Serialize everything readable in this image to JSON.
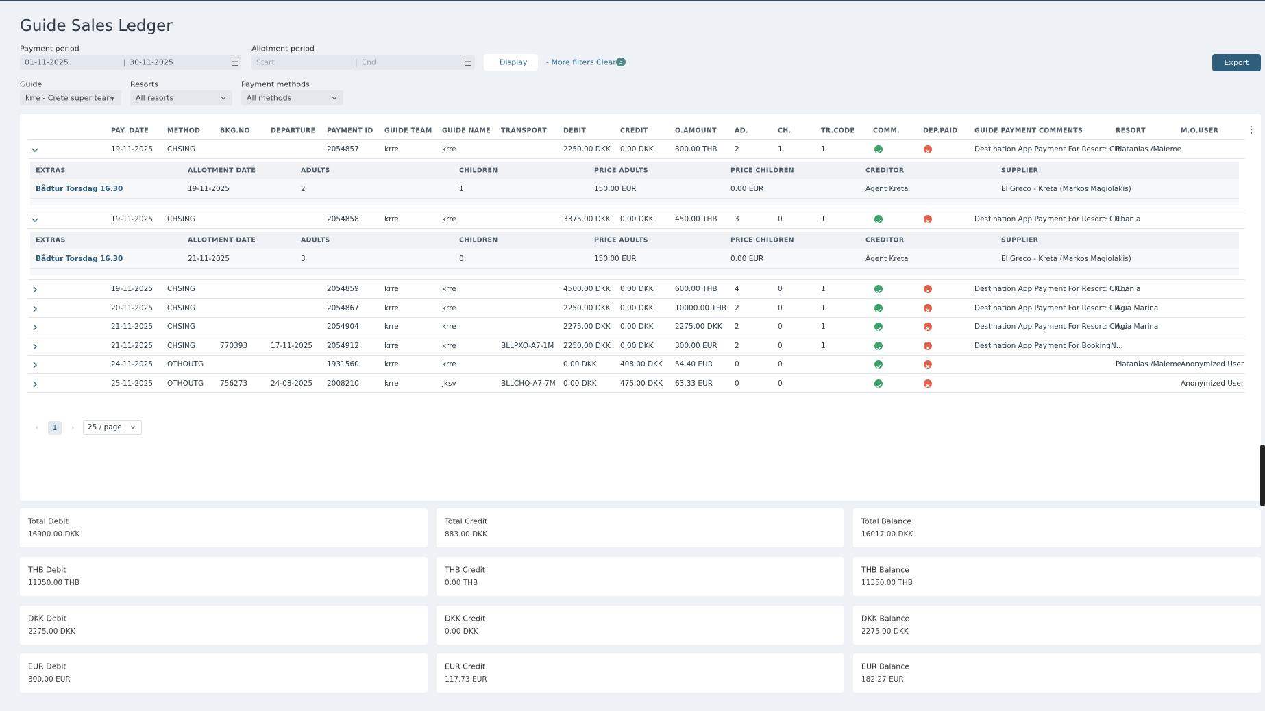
{
  "header": {
    "title": "Guide Sales Ledger"
  },
  "filters": {
    "payment_period": {
      "label": "Payment period",
      "start": "01-11-2025",
      "end": "30-11-2025"
    },
    "allotment_period": {
      "label": "Allotment period",
      "start": "Start",
      "end": "End"
    },
    "display": "Display",
    "more_filters": "- More filters",
    "clear": "Clear",
    "clear_count": "3",
    "export": "Export",
    "guide": {
      "label": "Guide",
      "value": "krre - Crete super team"
    },
    "resorts": {
      "label": "Resorts",
      "value": "All resorts"
    },
    "payment_methods": {
      "label": "Payment methods",
      "value": "All methods"
    }
  },
  "table": {
    "columns": [
      "PAY. DATE",
      "METHOD",
      "BKG.NO",
      "DEPARTURE",
      "PAYMENT ID",
      "GUIDE TEAM",
      "GUIDE NAME",
      "TRANSPORT",
      "DEBIT",
      "CREDIT",
      "O.AMOUNT",
      "AD.",
      "CH.",
      "TR.CODE",
      "COMM.",
      "DEP.PAID",
      "GUIDE PAYMENT COMMENTS",
      "RESORT",
      "M.O.USER"
    ],
    "detail_columns": [
      "EXTRAS",
      "ALLOTMENT DATE",
      "ADULTS",
      "CHILDREN",
      "PRICE ADULTS",
      "PRICE CHILDREN",
      "CREDITOR",
      "SUPPLIER"
    ],
    "rows": [
      {
        "cells": [
          "19-11-2025",
          "CHSING",
          null,
          null,
          "2054857",
          "krre",
          "krre",
          null,
          "2250.00 DKK",
          "0.00 DKK",
          "300.00 THB",
          "2",
          "1",
          "1",
          null,
          null,
          "Destination App Payment For Resort: CH...",
          "Platanias /Maleme",
          null
        ],
        "extras": [
          [
            "Bådtur Torsdag 16.30",
            "19-11-2025",
            "2",
            "1",
            "150.00 EUR",
            "0.00 EUR",
            "Agent Kreta",
            "El Greco - Kreta (Markos Magiolakis)"
          ]
        ]
      },
      {
        "cells": [
          "19-11-2025",
          "CHSING",
          null,
          null,
          "2054858",
          "krre",
          "krre",
          null,
          "3375.00 DKK",
          "0.00 DKK",
          "450.00 THB",
          "3",
          "0",
          "1",
          null,
          null,
          "Destination App Payment For Resort: CH...",
          "Chania",
          null
        ],
        "extras": [
          [
            "Bådtur Torsdag 16.30",
            "21-11-2025",
            "3",
            "0",
            "150.00 EUR",
            "0.00 EUR",
            "Agent Kreta",
            "El Greco - Kreta (Markos Magiolakis)"
          ]
        ]
      },
      {
        "cells": [
          "19-11-2025",
          "CHSING",
          null,
          null,
          "2054859",
          "krre",
          "krre",
          null,
          "4500.00 DKK",
          "0.00 DKK",
          "600.00 THB",
          "4",
          "0",
          "1",
          null,
          null,
          "Destination App Payment For Resort: CH...",
          "Chania",
          null
        ]
      },
      {
        "cells": [
          "20-11-2025",
          "CHSING",
          null,
          null,
          "2054867",
          "krre",
          "krre",
          null,
          "2250.00 DKK",
          "0.00 DKK",
          "10000.00 THB",
          "2",
          "0",
          "1",
          null,
          null,
          "Destination App Payment For Resort: CH...",
          "Agia Marina",
          null
        ]
      },
      {
        "cells": [
          "21-11-2025",
          "CHSING",
          null,
          null,
          "2054904",
          "krre",
          "krre",
          null,
          "2275.00 DKK",
          "0.00 DKK",
          "2275.00 DKK",
          "2",
          "0",
          "1",
          null,
          null,
          "Destination App Payment For Resort: CH...",
          "Agia Marina",
          null
        ]
      },
      {
        "cells": [
          "21-11-2025",
          "CHSING",
          "770393",
          "17-11-2025",
          "2054912",
          "krre",
          "krre",
          "BLLPXO-A7-1M",
          "2250.00 DKK",
          "0.00 DKK",
          "300.00 EUR",
          "2",
          "0",
          "1",
          null,
          null,
          "Destination App Payment For BookingN...",
          null,
          null
        ]
      },
      {
        "cells": [
          "24-11-2025",
          "OTHOUTG",
          null,
          null,
          "1931560",
          "krre",
          "krre",
          null,
          "0.00 DKK",
          "408.00 DKK",
          "54.40 EUR",
          "0",
          "0",
          null,
          null,
          null,
          null,
          "Platanias /Maleme",
          "Anonymized User"
        ]
      },
      {
        "cells": [
          "25-11-2025",
          "OTHOUTG",
          "756273",
          "24-08-2025",
          "2008210",
          "krre",
          "jksv",
          "BLLCHQ-A7-7M",
          "0.00 DKK",
          "475.00 DKK",
          "63.33 EUR",
          "0",
          "0",
          null,
          null,
          null,
          null,
          null,
          "Anonymized User"
        ]
      }
    ]
  },
  "pagination": {
    "page": "1",
    "page_size": "25 / page"
  },
  "summary": [
    {
      "label": "Total Debit",
      "value": "16900.00 DKK"
    },
    {
      "label": "Total Credit",
      "value": "883.00 DKK"
    },
    {
      "label": "Total Balance",
      "value": "16017.00 DKK"
    },
    {
      "label": "THB Debit",
      "value": "11350.00 THB"
    },
    {
      "label": "THB Credit",
      "value": "0.00 THB"
    },
    {
      "label": "THB Balance",
      "value": "11350.00 THB"
    },
    {
      "label": "DKK Debit",
      "value": "2275.00 DKK"
    },
    {
      "label": "DKK Credit",
      "value": "0.00 DKK"
    },
    {
      "label": "DKK Balance",
      "value": "2275.00 DKK"
    },
    {
      "label": "EUR Debit",
      "value": "300.00 EUR"
    },
    {
      "label": "EUR Credit",
      "value": "117.73 EUR"
    },
    {
      "label": "EUR Balance",
      "value": "182.27 EUR"
    }
  ]
}
